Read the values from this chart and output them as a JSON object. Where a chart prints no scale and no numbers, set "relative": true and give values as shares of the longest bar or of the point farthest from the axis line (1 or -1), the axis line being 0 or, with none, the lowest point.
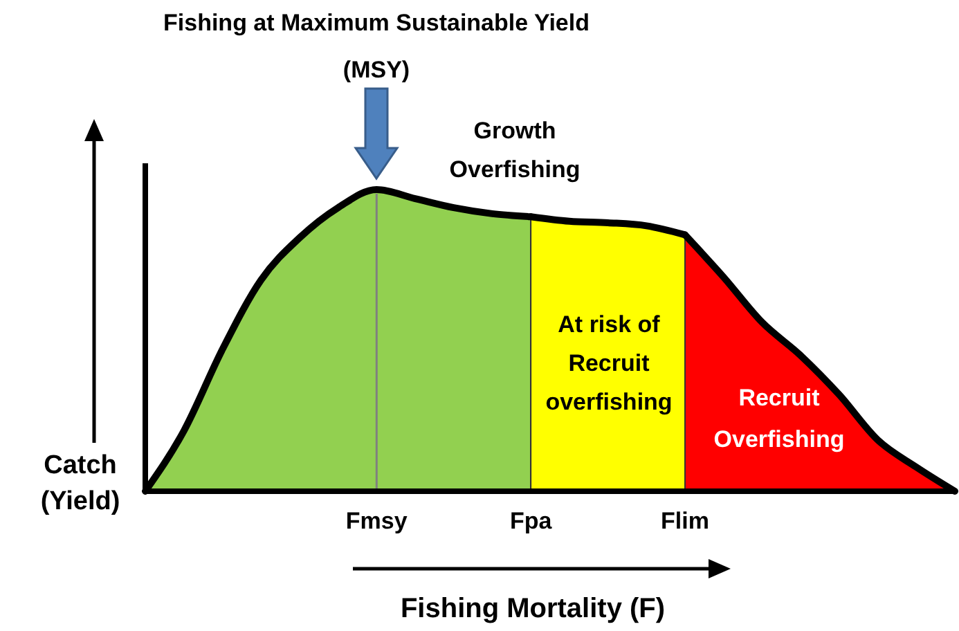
{
  "chart_data": {
    "type": "area",
    "relative": true,
    "xlabel": "Fishing Mortality (F)",
    "ylabel": "Catch (Yield)",
    "categories": [
      null,
      null,
      null,
      null,
      null,
      null,
      "Fmsy",
      null,
      null,
      null,
      "Fpa",
      null,
      null,
      null,
      "Flim",
      null,
      null,
      null,
      null,
      null,
      null,
      null
    ],
    "series": [
      {
        "color": "#92d050",
        "values": [
          0,
          0.2,
          0.47,
          0.7,
          0.84,
          0.94,
          1,
          0.97,
          0.94,
          0.92,
          0.91,
          null,
          null,
          null,
          null,
          null,
          null,
          null,
          null,
          null,
          null,
          null
        ]
      },
      {
        "color": "#ffff00",
        "values": [
          null,
          null,
          null,
          null,
          null,
          null,
          null,
          null,
          null,
          null,
          0.91,
          0.895,
          0.89,
          0.88,
          0.85,
          null,
          null,
          null,
          null,
          null,
          null,
          null
        ]
      },
      {
        "color": "#ff0000",
        "values": [
          null,
          null,
          null,
          null,
          null,
          null,
          null,
          null,
          null,
          null,
          null,
          null,
          null,
          null,
          0.85,
          0.71,
          0.56,
          0.45,
          0.32,
          0.17,
          0.08,
          0
        ]
      }
    ],
    "ref_lines": [
      {
        "axis": "x",
        "value": "Fmsy",
        "color": "#808080"
      }
    ],
    "annotations": [
      "Fishing at Maximum Sustainable Yield (MSY)",
      "Growth Overfishing",
      "At risk of Recruit overfishing",
      "Recruit Overfishing"
    ]
  }
}
